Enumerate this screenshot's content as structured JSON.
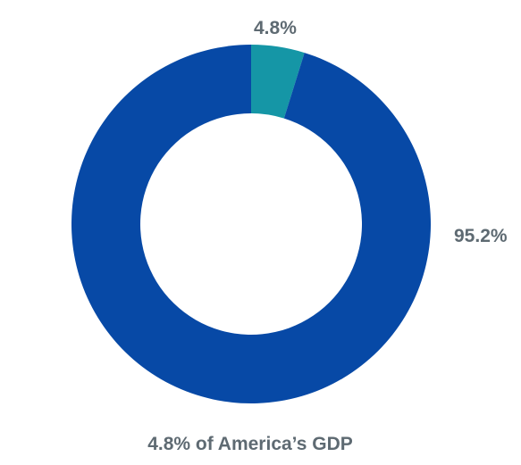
{
  "chart_data": {
    "type": "pie",
    "donut": true,
    "slices": [
      {
        "label": "4.8%",
        "value": 4.8,
        "color": "#1596A6"
      },
      {
        "label": "95.2%",
        "value": 95.2,
        "color": "#0749A6"
      }
    ],
    "caption": "4.8% of America’s GDP"
  },
  "colors": {
    "label_text": "#5E6A72",
    "background": "#FFFFFF"
  }
}
